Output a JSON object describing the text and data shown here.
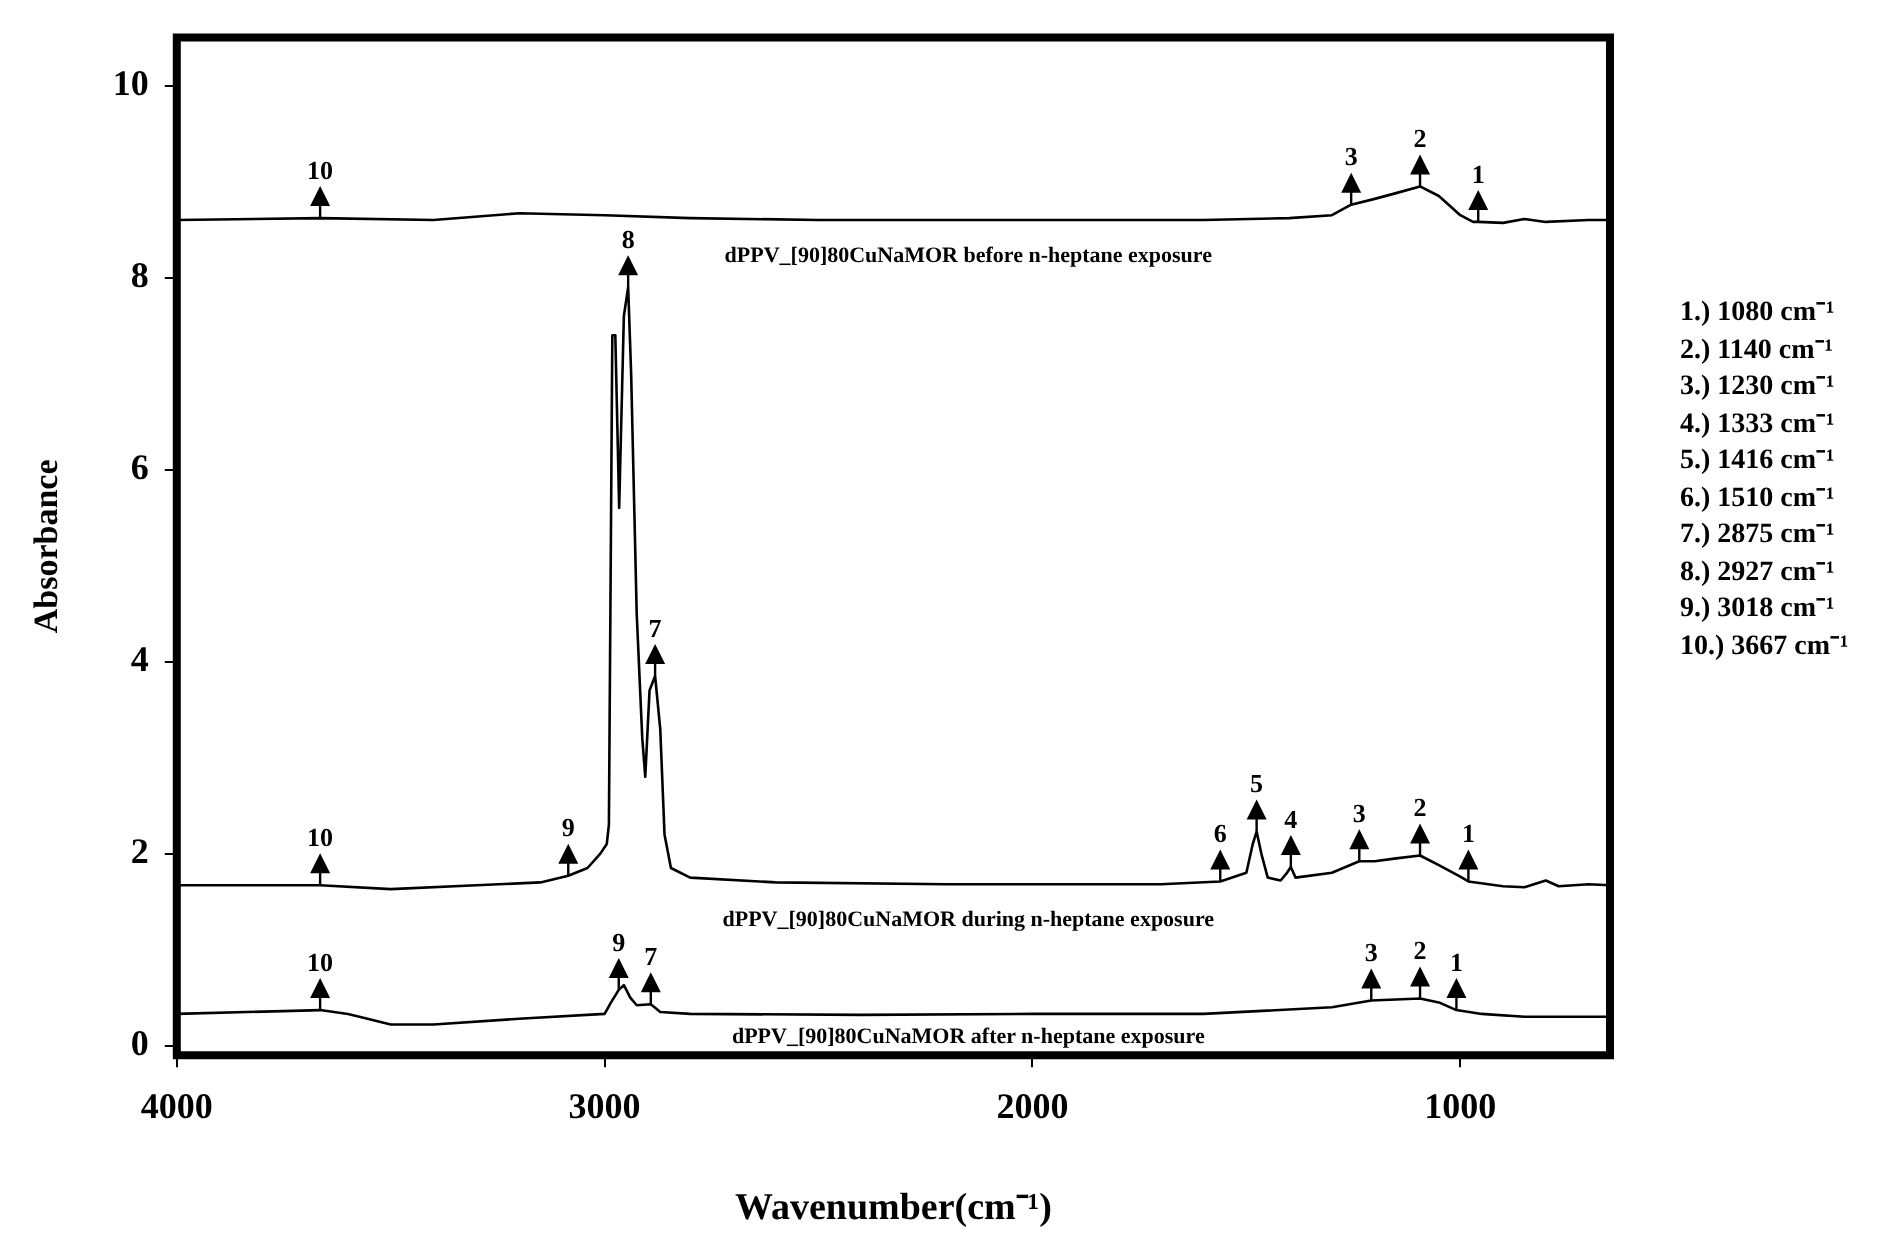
{
  "chart_data": {
    "type": "line",
    "xlabel": "Wavenumber(cm⁻¹)",
    "ylabel": "Absorbance",
    "xlim": [
      4000,
      650
    ],
    "xticks": [
      4000,
      3000,
      2000,
      1000
    ],
    "ylim": [
      -0.1,
      10.5
    ],
    "yticks": [
      0,
      2,
      4,
      6,
      8,
      10
    ],
    "grid": false,
    "legend": false,
    "marker": "none",
    "line_style": "solid",
    "series": [
      {
        "name": "dPPV_[90]80CuNaMOR before n-heptane exposure",
        "color": "#000000",
        "x": [
          4000,
          3665,
          3400,
          3200,
          3000,
          2800,
          2500,
          2000,
          1600,
          1400,
          1300,
          1255,
          1200,
          1150,
          1094,
          1050,
          1000,
          970,
          958,
          900,
          850,
          800,
          700,
          650
        ],
        "values": [
          8.6,
          8.62,
          8.6,
          8.67,
          8.65,
          8.62,
          8.6,
          8.6,
          8.6,
          8.62,
          8.65,
          8.76,
          8.82,
          8.88,
          8.95,
          8.85,
          8.65,
          8.58,
          8.58,
          8.57,
          8.61,
          8.58,
          8.6,
          8.6
        ]
      },
      {
        "name": "dPPV_[90]80CuNaMOR during n-heptane exposure",
        "color": "#000000",
        "x": [
          4000,
          3665,
          3500,
          3300,
          3150,
          3085,
          3040,
          3010,
          2995,
          2990,
          2982,
          2975,
          2966,
          2955,
          2945,
          2938,
          2925,
          2912,
          2905,
          2895,
          2882,
          2870,
          2860,
          2845,
          2800,
          2600,
          2200,
          1700,
          1561,
          1500,
          1485,
          1476,
          1465,
          1450,
          1420,
          1405,
          1396,
          1385,
          1300,
          1236,
          1200,
          1150,
          1094,
          1050,
          1000,
          981,
          900,
          850,
          800,
          770,
          700,
          650
        ],
        "values": [
          1.67,
          1.67,
          1.63,
          1.67,
          1.7,
          1.77,
          1.85,
          2.0,
          2.1,
          2.3,
          7.4,
          7.4,
          5.6,
          7.6,
          7.9,
          7.0,
          4.5,
          3.2,
          2.8,
          3.7,
          3.85,
          3.3,
          2.2,
          1.85,
          1.75,
          1.7,
          1.68,
          1.68,
          1.71,
          1.8,
          2.1,
          2.23,
          2.0,
          1.75,
          1.72,
          1.8,
          1.86,
          1.75,
          1.8,
          1.92,
          1.92,
          1.95,
          1.98,
          1.88,
          1.76,
          1.71,
          1.66,
          1.65,
          1.72,
          1.66,
          1.68,
          1.67
        ]
      },
      {
        "name": "dPPV_[90]80CuNaMOR after n-heptane exposure",
        "color": "#000000",
        "x": [
          4000,
          3665,
          3600,
          3500,
          3400,
          3200,
          3000,
          2985,
          2967,
          2955,
          2940,
          2925,
          2892,
          2870,
          2800,
          2400,
          2000,
          1600,
          1300,
          1208,
          1150,
          1094,
          1050,
          1009,
          950,
          850,
          700,
          650
        ],
        "values": [
          0.33,
          0.37,
          0.33,
          0.22,
          0.22,
          0.28,
          0.33,
          0.45,
          0.58,
          0.63,
          0.5,
          0.42,
          0.43,
          0.35,
          0.33,
          0.32,
          0.33,
          0.33,
          0.4,
          0.47,
          0.48,
          0.49,
          0.45,
          0.37,
          0.33,
          0.3,
          0.3,
          0.3
        ]
      }
    ],
    "annotations": [
      {
        "text": "10",
        "x": 3665,
        "y": 8.62
      },
      {
        "text": "3",
        "x": 1255,
        "y": 8.76
      },
      {
        "text": "2",
        "x": 1094,
        "y": 8.95
      },
      {
        "text": "1",
        "x": 958,
        "y": 8.58
      },
      {
        "text": "10",
        "x": 3665,
        "y": 1.67
      },
      {
        "text": "9",
        "x": 3085,
        "y": 1.77
      },
      {
        "text": "8",
        "x": 2945,
        "y": 7.9
      },
      {
        "text": "7",
        "x": 2882,
        "y": 3.85
      },
      {
        "text": "6",
        "x": 1561,
        "y": 1.71
      },
      {
        "text": "5",
        "x": 1476,
        "y": 2.23
      },
      {
        "text": "4",
        "x": 1396,
        "y": 1.86
      },
      {
        "text": "3",
        "x": 1236,
        "y": 1.92
      },
      {
        "text": "2",
        "x": 1094,
        "y": 1.98
      },
      {
        "text": "1",
        "x": 981,
        "y": 1.71
      },
      {
        "text": "10",
        "x": 3665,
        "y": 0.37
      },
      {
        "text": "9",
        "x": 2967,
        "y": 0.58
      },
      {
        "text": "7",
        "x": 2892,
        "y": 0.43
      },
      {
        "text": "3",
        "x": 1208,
        "y": 0.47
      },
      {
        "text": "2",
        "x": 1094,
        "y": 0.49
      },
      {
        "text": "1",
        "x": 1009,
        "y": 0.37
      },
      "1.) 1080 cm⁻¹",
      "2.) 1140 cm⁻¹",
      "3.) 1230 cm⁻¹",
      "4.) 1333 cm⁻¹",
      "5.) 1416 cm⁻¹",
      "6.) 1510 cm⁻¹",
      "7.) 2875 cm⁻¹",
      "8.) 2927 cm⁻¹",
      "9.) 3018 cm⁻¹",
      "10.) 3667 cm⁻¹"
    ]
  }
}
